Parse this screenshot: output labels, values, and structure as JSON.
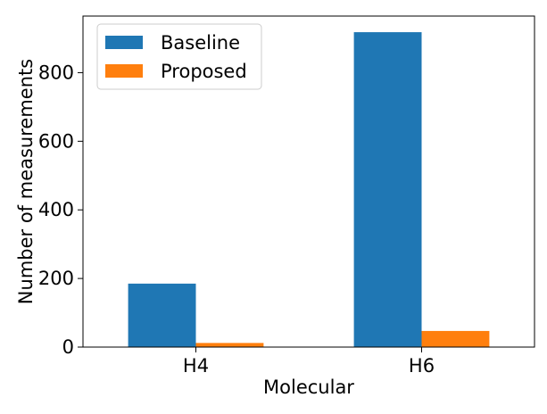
{
  "chart_data": {
    "type": "bar",
    "title": "",
    "xlabel": "Molecular",
    "ylabel": "Number of measurements",
    "categories": [
      "H4",
      "H6"
    ],
    "series": [
      {
        "name": "Baseline",
        "values": [
          185,
          918
        ],
        "color": "#1f77b4"
      },
      {
        "name": "Proposed",
        "values": [
          12,
          47
        ],
        "color": "#ff7f0e"
      }
    ],
    "ylim": [
      0,
      965
    ],
    "yticks": [
      0,
      200,
      400,
      600,
      800
    ],
    "grid": false,
    "legend_position": "top-left"
  }
}
